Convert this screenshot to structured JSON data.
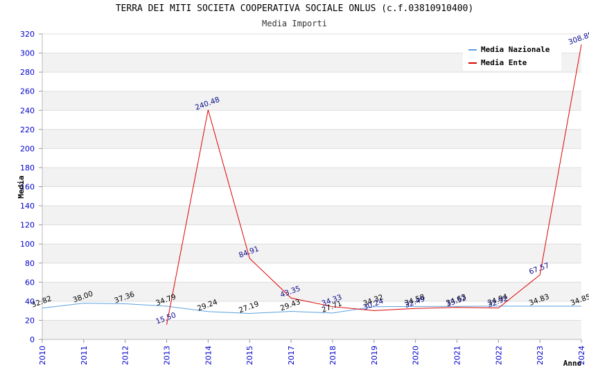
{
  "chart_data": {
    "type": "line",
    "title": "TERRA DEI MITI SOCIETA COOPERATIVA SOCIALE ONLUS (c.f.03810910400)",
    "subtitle": "Media Importi",
    "xlabel": "Anno",
    "ylabel": "Media",
    "ylim": [
      0,
      320
    ],
    "yticks": [
      0,
      20,
      40,
      60,
      80,
      100,
      120,
      140,
      160,
      180,
      200,
      220,
      240,
      260,
      280,
      300,
      320
    ],
    "categories": [
      "2010",
      "2011",
      "2012",
      "2013",
      "2014",
      "2015",
      "2017",
      "2018",
      "2019",
      "2020",
      "2021",
      "2022",
      "2023",
      "2024"
    ],
    "grid": true,
    "legend_position": "top-right",
    "series": [
      {
        "name": "Media Nazionale",
        "color": "#5aa0e0",
        "values": [
          32.82,
          38.0,
          37.36,
          34.79,
          29.24,
          27.19,
          29.43,
          27.71,
          34.32,
          34.58,
          34.63,
          34.94,
          34.83,
          34.85
        ],
        "labels": [
          "32.82",
          "38.00",
          "37.36",
          "34.79",
          "29.24",
          "27.19",
          "29.43",
          "27.71",
          "34.32",
          "34.58",
          "34.63",
          "34.94",
          "34.83",
          "34.85"
        ]
      },
      {
        "name": "Media Ente",
        "color": "#dd0000",
        "values": [
          null,
          null,
          null,
          15.5,
          240.48,
          84.91,
          43.35,
          34.33,
          30.24,
          32.49,
          33.52,
          32.92,
          67.57,
          308.89
        ],
        "labels": [
          null,
          null,
          null,
          "15.50",
          "240.48",
          "84.91",
          "43.35",
          "34.33",
          "30.24",
          "32.49",
          "33.52",
          "32.92",
          "67.57",
          "308.89"
        ]
      }
    ]
  }
}
